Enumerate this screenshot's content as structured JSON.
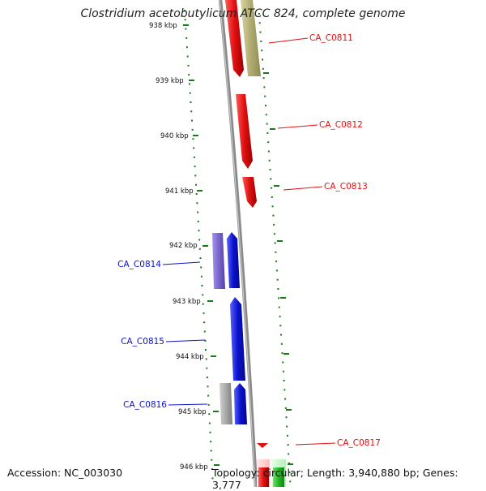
{
  "title": "Clostridium acetobutylicum ATCC 824, complete genome",
  "footer": {
    "accession": "Accession: NC_003030",
    "topology": "Topology: circular; Length: 3,940,880 bp; Genes: 3,777"
  },
  "kbp_ticks": [
    "938 kbp",
    "939 kbp",
    "940 kbp",
    "941 kbp",
    "942 kbp",
    "943 kbp",
    "944 kbp",
    "945 kbp",
    "946 kbp"
  ],
  "genes": {
    "forward": [
      {
        "label": "CA_C0811",
        "color": "#e01010"
      },
      {
        "label": "CA_C0812",
        "color": "#e01010"
      },
      {
        "label": "CA_C0813",
        "color": "#e01010"
      },
      {
        "label": "CA_C0817",
        "color": "#e01010"
      }
    ],
    "reverse": [
      {
        "label": "CA_C0814",
        "color": "#0a12cc"
      },
      {
        "label": "CA_C0815",
        "color": "#0a12cc"
      },
      {
        "label": "CA_C0816",
        "color": "#0a12cc"
      }
    ]
  },
  "colors": {
    "forward_cds": "#e01010",
    "reverse_cds": "#0a12cc",
    "olive_feature": "#b0ac70",
    "lavender_feature": "#7a66cc",
    "grey_feature": "#a8a8a8",
    "green_feature": "#22b822",
    "backbone": "#8a8a8a",
    "gc_ticks": "#1a7a1a"
  }
}
